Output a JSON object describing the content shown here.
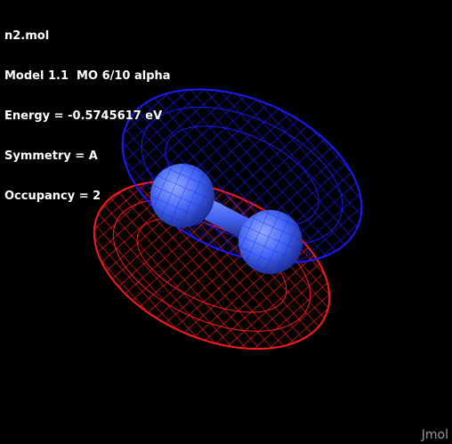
{
  "info": {
    "file": "n2.mol",
    "model": "Model 1.1  MO 6/10 alpha",
    "energy": "Energy = -0.5745617 eV",
    "symmetry": "Symmetry = A",
    "occupancy": "Occupancy = 2"
  },
  "watermark": "Jmol",
  "colors": {
    "background": "#000000",
    "positive_lobe": "#1a1aff",
    "negative_lobe": "#ff1a1a",
    "atom": "#3f62f0",
    "text": "#ffffff"
  },
  "icons": {
    "molecule": "nitrogen-molecule-model"
  }
}
